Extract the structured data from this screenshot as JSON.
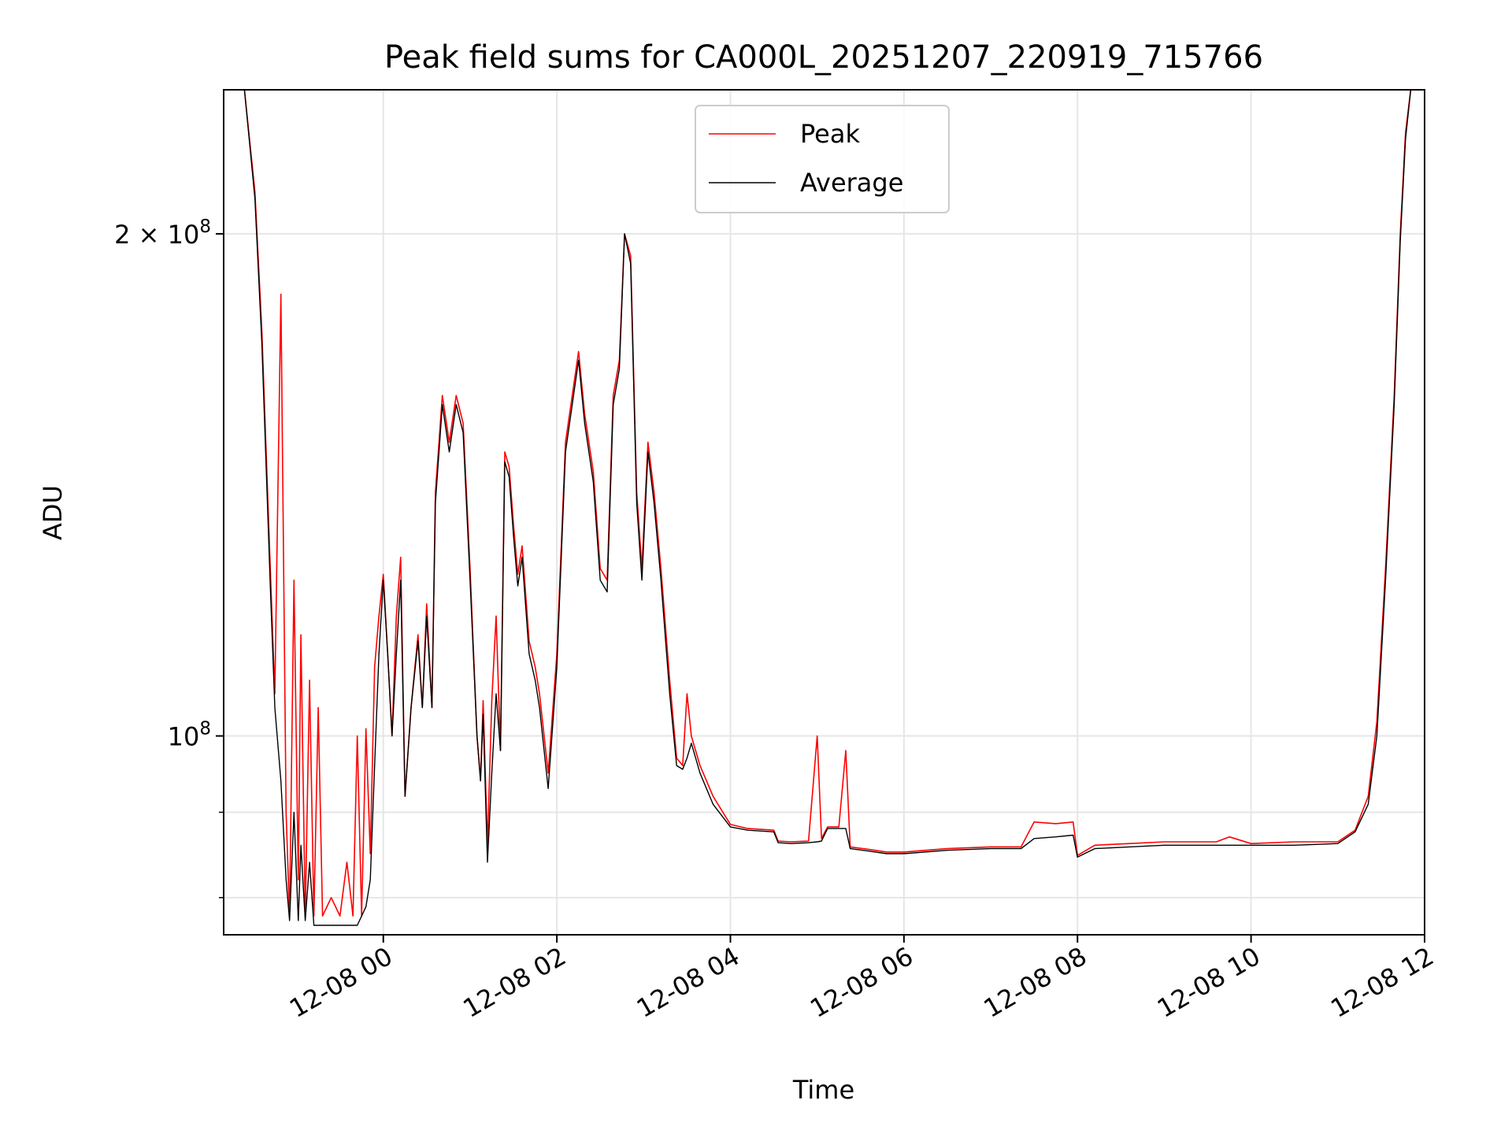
{
  "chart_data": {
    "type": "line",
    "title": "Peak field sums for CA000L_20251207_220919_715766",
    "xlabel": "Time",
    "ylabel": "ADU",
    "yscale": "log",
    "ylim": [
      76000000,
      244000000
    ],
    "xlim_hours": [
      -1.84,
      12.0
    ],
    "grid": true,
    "legend_position": "upper center",
    "y_major_ticks": [
      {
        "value": 100000000,
        "mantissa": "",
        "exp": "8"
      },
      {
        "value": 200000000,
        "mantissa": "2 × ",
        "exp": "8"
      }
    ],
    "y_minor_ticks": [
      80000000,
      90000000
    ],
    "x_ticks": [
      {
        "hour": 0,
        "label": "12-08 00"
      },
      {
        "hour": 2,
        "label": "12-08 02"
      },
      {
        "hour": 4,
        "label": "12-08 04"
      },
      {
        "hour": 6,
        "label": "12-08 06"
      },
      {
        "hour": 8,
        "label": "12-08 08"
      },
      {
        "hour": 10,
        "label": "12-08 10"
      },
      {
        "hour": 12,
        "label": "12-08 12"
      }
    ],
    "series": [
      {
        "name": "Peak",
        "color": "#ff0000",
        "points": [
          [
            -1.84,
            244000000
          ],
          [
            -1.6,
            244000000
          ],
          [
            -1.48,
            212000000
          ],
          [
            -1.4,
            175000000
          ],
          [
            -1.3,
            125000000
          ],
          [
            -1.25,
            106000000
          ],
          [
            -1.18,
            184000000
          ],
          [
            -1.12,
            90000000
          ],
          [
            -1.08,
            78000000
          ],
          [
            -1.03,
            124000000
          ],
          [
            -0.98,
            82000000
          ],
          [
            -0.95,
            115000000
          ],
          [
            -0.9,
            78000000
          ],
          [
            -0.85,
            108000000
          ],
          [
            -0.8,
            78000000
          ],
          [
            -0.75,
            104000000
          ],
          [
            -0.7,
            78000000
          ],
          [
            -0.6,
            80000000
          ],
          [
            -0.5,
            78000000
          ],
          [
            -0.42,
            84000000
          ],
          [
            -0.35,
            78000000
          ],
          [
            -0.3,
            100000000
          ],
          [
            -0.25,
            78000000
          ],
          [
            -0.2,
            101000000
          ],
          [
            -0.15,
            85000000
          ],
          [
            -0.1,
            110000000
          ],
          [
            -0.05,
            118000000
          ],
          [
            0.0,
            125000000
          ],
          [
            0.05,
            112000000
          ],
          [
            0.1,
            100000000
          ],
          [
            0.15,
            118000000
          ],
          [
            0.2,
            128000000
          ],
          [
            0.25,
            92000000
          ],
          [
            0.32,
            104000000
          ],
          [
            0.4,
            115000000
          ],
          [
            0.45,
            104000000
          ],
          [
            0.5,
            120000000
          ],
          [
            0.56,
            104000000
          ],
          [
            0.6,
            140000000
          ],
          [
            0.68,
            160000000
          ],
          [
            0.76,
            150000000
          ],
          [
            0.84,
            160000000
          ],
          [
            0.92,
            154000000
          ],
          [
            1.0,
            126000000
          ],
          [
            1.08,
            100000000
          ],
          [
            1.12,
            94000000
          ],
          [
            1.15,
            105000000
          ],
          [
            1.2,
            86000000
          ],
          [
            1.25,
            105000000
          ],
          [
            1.3,
            118000000
          ],
          [
            1.35,
            98000000
          ],
          [
            1.4,
            148000000
          ],
          [
            1.45,
            145000000
          ],
          [
            1.5,
            134000000
          ],
          [
            1.55,
            125000000
          ],
          [
            1.6,
            130000000
          ],
          [
            1.68,
            114000000
          ],
          [
            1.75,
            110000000
          ],
          [
            1.8,
            106000000
          ],
          [
            1.9,
            95000000
          ],
          [
            2.0,
            112000000
          ],
          [
            2.1,
            150000000
          ],
          [
            2.25,
            170000000
          ],
          [
            2.32,
            156000000
          ],
          [
            2.42,
            144000000
          ],
          [
            2.5,
            126000000
          ],
          [
            2.58,
            124000000
          ],
          [
            2.65,
            160000000
          ],
          [
            2.72,
            168000000
          ],
          [
            2.78,
            200000000
          ],
          [
            2.85,
            194000000
          ],
          [
            2.92,
            140000000
          ],
          [
            2.98,
            126000000
          ],
          [
            3.05,
            150000000
          ],
          [
            3.12,
            140000000
          ],
          [
            3.2,
            126000000
          ],
          [
            3.3,
            108000000
          ],
          [
            3.38,
            97000000
          ],
          [
            3.45,
            96000000
          ],
          [
            3.5,
            106000000
          ],
          [
            3.55,
            100000000
          ],
          [
            3.65,
            96000000
          ],
          [
            3.8,
            92000000
          ],
          [
            4.0,
            88500000
          ],
          [
            4.2,
            88000000
          ],
          [
            4.5,
            87800000
          ],
          [
            4.55,
            86500000
          ],
          [
            4.7,
            86400000
          ],
          [
            4.9,
            86500000
          ],
          [
            5.0,
            100000000
          ],
          [
            5.05,
            86800000
          ],
          [
            5.12,
            88200000
          ],
          [
            5.25,
            88200000
          ],
          [
            5.33,
            98000000
          ],
          [
            5.38,
            85800000
          ],
          [
            5.6,
            85500000
          ],
          [
            5.8,
            85200000
          ],
          [
            6.0,
            85200000
          ],
          [
            6.5,
            85600000
          ],
          [
            7.0,
            85800000
          ],
          [
            7.35,
            85800000
          ],
          [
            7.5,
            88800000
          ],
          [
            7.75,
            88600000
          ],
          [
            7.95,
            88800000
          ],
          [
            8.0,
            84800000
          ],
          [
            8.2,
            86000000
          ],
          [
            8.6,
            86200000
          ],
          [
            9.0,
            86400000
          ],
          [
            9.6,
            86400000
          ],
          [
            9.75,
            87000000
          ],
          [
            10.0,
            86200000
          ],
          [
            10.5,
            86400000
          ],
          [
            11.0,
            86400000
          ],
          [
            11.2,
            87800000
          ],
          [
            11.35,
            92000000
          ],
          [
            11.45,
            102000000
          ],
          [
            11.55,
            126000000
          ],
          [
            11.65,
            160000000
          ],
          [
            11.72,
            200000000
          ],
          [
            11.78,
            230000000
          ],
          [
            11.84,
            244000000
          ]
        ]
      },
      {
        "name": "Average",
        "color": "#000000",
        "points": [
          [
            -1.84,
            244000000
          ],
          [
            -1.6,
            244000000
          ],
          [
            -1.48,
            210000000
          ],
          [
            -1.4,
            172000000
          ],
          [
            -1.3,
            122000000
          ],
          [
            -1.25,
            104000000
          ],
          [
            -1.18,
            94000000
          ],
          [
            -1.12,
            82000000
          ],
          [
            -1.08,
            77500000
          ],
          [
            -1.03,
            90000000
          ],
          [
            -0.98,
            77500000
          ],
          [
            -0.95,
            86000000
          ],
          [
            -0.9,
            77500000
          ],
          [
            -0.85,
            84000000
          ],
          [
            -0.8,
            77000000
          ],
          [
            -0.7,
            77000000
          ],
          [
            -0.5,
            77000000
          ],
          [
            -0.3,
            77000000
          ],
          [
            -0.2,
            79000000
          ],
          [
            -0.15,
            82000000
          ],
          [
            -0.1,
            96000000
          ],
          [
            -0.05,
            112000000
          ],
          [
            0.0,
            124000000
          ],
          [
            0.05,
            112000000
          ],
          [
            0.1,
            100000000
          ],
          [
            0.15,
            112000000
          ],
          [
            0.2,
            124000000
          ],
          [
            0.25,
            92000000
          ],
          [
            0.32,
            104000000
          ],
          [
            0.4,
            114000000
          ],
          [
            0.45,
            104000000
          ],
          [
            0.5,
            118000000
          ],
          [
            0.56,
            104000000
          ],
          [
            0.6,
            138000000
          ],
          [
            0.68,
            158000000
          ],
          [
            0.76,
            148000000
          ],
          [
            0.84,
            158000000
          ],
          [
            0.92,
            152000000
          ],
          [
            1.0,
            124000000
          ],
          [
            1.08,
            100000000
          ],
          [
            1.12,
            94000000
          ],
          [
            1.15,
            103000000
          ],
          [
            1.2,
            84000000
          ],
          [
            1.25,
            95000000
          ],
          [
            1.3,
            106000000
          ],
          [
            1.35,
            98000000
          ],
          [
            1.4,
            146000000
          ],
          [
            1.45,
            143000000
          ],
          [
            1.5,
            132000000
          ],
          [
            1.55,
            123000000
          ],
          [
            1.6,
            128000000
          ],
          [
            1.68,
            112000000
          ],
          [
            1.75,
            108000000
          ],
          [
            1.8,
            104000000
          ],
          [
            1.9,
            93000000
          ],
          [
            2.0,
            110000000
          ],
          [
            2.1,
            148000000
          ],
          [
            2.25,
            168000000
          ],
          [
            2.32,
            154000000
          ],
          [
            2.42,
            142000000
          ],
          [
            2.5,
            124000000
          ],
          [
            2.58,
            122000000
          ],
          [
            2.65,
            158000000
          ],
          [
            2.72,
            166000000
          ],
          [
            2.78,
            200000000
          ],
          [
            2.85,
            192000000
          ],
          [
            2.92,
            138000000
          ],
          [
            2.98,
            124000000
          ],
          [
            3.05,
            148000000
          ],
          [
            3.12,
            138000000
          ],
          [
            3.2,
            124000000
          ],
          [
            3.3,
            106000000
          ],
          [
            3.38,
            96000000
          ],
          [
            3.45,
            95500000
          ],
          [
            3.5,
            97000000
          ],
          [
            3.55,
            99000000
          ],
          [
            3.65,
            95000000
          ],
          [
            3.8,
            91000000
          ],
          [
            4.0,
            88200000
          ],
          [
            4.2,
            87800000
          ],
          [
            4.5,
            87600000
          ],
          [
            4.55,
            86300000
          ],
          [
            4.7,
            86200000
          ],
          [
            4.9,
            86300000
          ],
          [
            5.0,
            86400000
          ],
          [
            5.05,
            86500000
          ],
          [
            5.12,
            88000000
          ],
          [
            5.25,
            88000000
          ],
          [
            5.33,
            88000000
          ],
          [
            5.38,
            85600000
          ],
          [
            5.6,
            85300000
          ],
          [
            5.8,
            85000000
          ],
          [
            6.0,
            85000000
          ],
          [
            6.5,
            85400000
          ],
          [
            7.0,
            85600000
          ],
          [
            7.35,
            85600000
          ],
          [
            7.5,
            86800000
          ],
          [
            7.75,
            87000000
          ],
          [
            7.95,
            87200000
          ],
          [
            8.0,
            84600000
          ],
          [
            8.2,
            85600000
          ],
          [
            8.6,
            85800000
          ],
          [
            9.0,
            86000000
          ],
          [
            9.6,
            86000000
          ],
          [
            9.75,
            86000000
          ],
          [
            10.0,
            86000000
          ],
          [
            10.5,
            86000000
          ],
          [
            11.0,
            86200000
          ],
          [
            11.2,
            87600000
          ],
          [
            11.35,
            91000000
          ],
          [
            11.45,
            100000000
          ],
          [
            11.55,
            124000000
          ],
          [
            11.65,
            158000000
          ],
          [
            11.72,
            198000000
          ],
          [
            11.78,
            228000000
          ],
          [
            11.84,
            244000000
          ]
        ]
      }
    ]
  }
}
